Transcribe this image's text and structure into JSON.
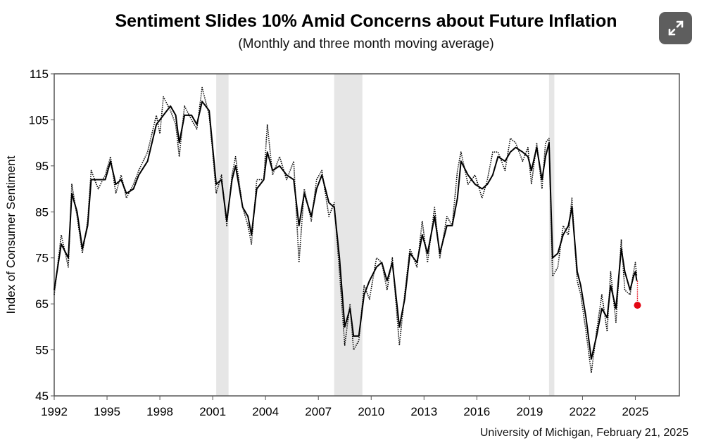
{
  "chart_data": {
    "type": "line",
    "title": "Sentiment Slides 10% Amid Concerns about Future Inflation",
    "subtitle": "(Monthly and three month moving average)",
    "ylabel": "Index of Consumer Sentiment",
    "xlabel": "",
    "source": "University of Michigan, February 21, 2025",
    "xlim": [
      1992,
      2027.5
    ],
    "ylim": [
      45,
      115
    ],
    "x_ticks": [
      "1992",
      "1995",
      "1998",
      "2001",
      "2004",
      "2007",
      "2010",
      "2013",
      "2016",
      "2019",
      "2022",
      "2025"
    ],
    "y_ticks": [
      "115",
      "105",
      "95",
      "85",
      "75",
      "65",
      "55",
      "45"
    ],
    "grid": false,
    "recessions": [
      [
        2001.2,
        2001.9
      ],
      [
        2007.9,
        2009.5
      ],
      [
        2020.1,
        2020.4
      ]
    ],
    "recession_color": "#e6e6e6",
    "series": [
      {
        "style": "dotted",
        "color": "#000000",
        "points": [
          [
            1992,
            67
          ],
          [
            1992.4,
            80
          ],
          [
            1992.8,
            73
          ],
          [
            1993.0,
            91
          ],
          [
            1993.3,
            84
          ],
          [
            1993.6,
            76
          ],
          [
            1993.9,
            83
          ],
          [
            1994.1,
            94
          ],
          [
            1994.5,
            90
          ],
          [
            1994.9,
            93
          ],
          [
            1995.2,
            97
          ],
          [
            1995.5,
            89
          ],
          [
            1995.8,
            93
          ],
          [
            1996.1,
            88
          ],
          [
            1996.5,
            91
          ],
          [
            1996.8,
            94
          ],
          [
            1997.3,
            98
          ],
          [
            1997.8,
            106
          ],
          [
            1998.0,
            102
          ],
          [
            1998.2,
            110
          ],
          [
            1998.6,
            107
          ],
          [
            1998.9,
            104
          ],
          [
            1999.1,
            97
          ],
          [
            1999.4,
            108
          ],
          [
            1999.8,
            105
          ],
          [
            2000.1,
            103
          ],
          [
            2000.4,
            112
          ],
          [
            2000.8,
            106
          ],
          [
            2001.0,
            98
          ],
          [
            2001.2,
            89
          ],
          [
            2001.5,
            93
          ],
          [
            2001.8,
            82
          ],
          [
            2002.1,
            93
          ],
          [
            2002.3,
            97
          ],
          [
            2002.7,
            86
          ],
          [
            2003.0,
            82
          ],
          [
            2003.2,
            78
          ],
          [
            2003.5,
            92
          ],
          [
            2003.9,
            92
          ],
          [
            2004.1,
            104
          ],
          [
            2004.4,
            93
          ],
          [
            2004.8,
            97
          ],
          [
            2005.2,
            92
          ],
          [
            2005.6,
            96
          ],
          [
            2005.9,
            74
          ],
          [
            2006.2,
            90
          ],
          [
            2006.6,
            83
          ],
          [
            2006.9,
            92
          ],
          [
            2007.2,
            94
          ],
          [
            2007.6,
            84
          ],
          [
            2007.9,
            87
          ],
          [
            2008.2,
            72
          ],
          [
            2008.5,
            56
          ],
          [
            2008.8,
            65
          ],
          [
            2009.0,
            55
          ],
          [
            2009.3,
            57
          ],
          [
            2009.6,
            69
          ],
          [
            2009.9,
            66
          ],
          [
            2010.3,
            75
          ],
          [
            2010.6,
            74
          ],
          [
            2010.9,
            68
          ],
          [
            2011.2,
            75
          ],
          [
            2011.6,
            56
          ],
          [
            2011.9,
            67
          ],
          [
            2012.2,
            77
          ],
          [
            2012.6,
            73
          ],
          [
            2012.9,
            83
          ],
          [
            2013.2,
            74
          ],
          [
            2013.6,
            86
          ],
          [
            2013.9,
            75
          ],
          [
            2014.3,
            84
          ],
          [
            2014.6,
            82
          ],
          [
            2014.9,
            94
          ],
          [
            2015.1,
            98
          ],
          [
            2015.5,
            91
          ],
          [
            2015.9,
            93
          ],
          [
            2016.3,
            88
          ],
          [
            2016.6,
            92
          ],
          [
            2016.9,
            98
          ],
          [
            2017.2,
            98
          ],
          [
            2017.6,
            94
          ],
          [
            2017.9,
            101
          ],
          [
            2018.2,
            100
          ],
          [
            2018.6,
            96
          ],
          [
            2018.9,
            99
          ],
          [
            2019.1,
            91
          ],
          [
            2019.4,
            100
          ],
          [
            2019.7,
            90
          ],
          [
            2019.9,
            100
          ],
          [
            2020.1,
            101
          ],
          [
            2020.3,
            71
          ],
          [
            2020.6,
            73
          ],
          [
            2020.9,
            82
          ],
          [
            2021.2,
            80
          ],
          [
            2021.4,
            88
          ],
          [
            2021.7,
            70
          ],
          [
            2021.9,
            67
          ],
          [
            2022.2,
            59
          ],
          [
            2022.5,
            50
          ],
          [
            2022.8,
            59
          ],
          [
            2023.1,
            67
          ],
          [
            2023.4,
            59
          ],
          [
            2023.6,
            72
          ],
          [
            2023.9,
            61
          ],
          [
            2024.2,
            79
          ],
          [
            2024.4,
            68
          ],
          [
            2024.7,
            67
          ],
          [
            2024.9,
            72
          ],
          [
            2025.0,
            74
          ],
          [
            2025.08,
            71
          ]
        ]
      },
      {
        "style": "solid",
        "color": "#000000",
        "points": [
          [
            1992,
            68
          ],
          [
            1992.4,
            78
          ],
          [
            1992.8,
            75
          ],
          [
            1993.0,
            89
          ],
          [
            1993.3,
            85
          ],
          [
            1993.6,
            77
          ],
          [
            1993.9,
            82
          ],
          [
            1994.1,
            92
          ],
          [
            1994.5,
            92
          ],
          [
            1994.9,
            92
          ],
          [
            1995.2,
            96
          ],
          [
            1995.5,
            91
          ],
          [
            1995.8,
            92
          ],
          [
            1996.1,
            89
          ],
          [
            1996.5,
            90
          ],
          [
            1996.8,
            93
          ],
          [
            1997.3,
            96
          ],
          [
            1997.8,
            104
          ],
          [
            1998.2,
            106
          ],
          [
            1998.6,
            108
          ],
          [
            1998.9,
            106
          ],
          [
            1999.1,
            100
          ],
          [
            1999.4,
            106
          ],
          [
            1999.8,
            106
          ],
          [
            2000.1,
            104
          ],
          [
            2000.4,
            109
          ],
          [
            2000.8,
            107
          ],
          [
            2001.0,
            99
          ],
          [
            2001.2,
            91
          ],
          [
            2001.5,
            92
          ],
          [
            2001.8,
            83
          ],
          [
            2002.1,
            92
          ],
          [
            2002.3,
            95
          ],
          [
            2002.7,
            86
          ],
          [
            2003.0,
            84
          ],
          [
            2003.2,
            80
          ],
          [
            2003.5,
            90
          ],
          [
            2003.9,
            92
          ],
          [
            2004.1,
            98
          ],
          [
            2004.4,
            94
          ],
          [
            2004.8,
            95
          ],
          [
            2005.2,
            93
          ],
          [
            2005.6,
            92
          ],
          [
            2005.9,
            82
          ],
          [
            2006.2,
            89
          ],
          [
            2006.6,
            84
          ],
          [
            2006.9,
            90
          ],
          [
            2007.2,
            93
          ],
          [
            2007.6,
            87
          ],
          [
            2007.9,
            86
          ],
          [
            2008.2,
            75
          ],
          [
            2008.5,
            60
          ],
          [
            2008.8,
            64
          ],
          [
            2009.0,
            58
          ],
          [
            2009.3,
            58
          ],
          [
            2009.6,
            67
          ],
          [
            2009.9,
            70
          ],
          [
            2010.3,
            73
          ],
          [
            2010.6,
            74
          ],
          [
            2010.9,
            70
          ],
          [
            2011.2,
            74
          ],
          [
            2011.6,
            60
          ],
          [
            2011.9,
            66
          ],
          [
            2012.2,
            76
          ],
          [
            2012.6,
            74
          ],
          [
            2012.9,
            80
          ],
          [
            2013.2,
            76
          ],
          [
            2013.6,
            84
          ],
          [
            2013.9,
            76
          ],
          [
            2014.3,
            82
          ],
          [
            2014.6,
            82
          ],
          [
            2014.9,
            88
          ],
          [
            2015.1,
            96
          ],
          [
            2015.5,
            93
          ],
          [
            2015.9,
            91
          ],
          [
            2016.3,
            90
          ],
          [
            2016.6,
            91
          ],
          [
            2016.9,
            93
          ],
          [
            2017.2,
            97
          ],
          [
            2017.6,
            96
          ],
          [
            2017.9,
            98
          ],
          [
            2018.2,
            99
          ],
          [
            2018.6,
            98
          ],
          [
            2018.9,
            97
          ],
          [
            2019.1,
            94
          ],
          [
            2019.4,
            99
          ],
          [
            2019.7,
            92
          ],
          [
            2019.9,
            97
          ],
          [
            2020.1,
            100
          ],
          [
            2020.3,
            75
          ],
          [
            2020.6,
            76
          ],
          [
            2020.9,
            80
          ],
          [
            2021.2,
            82
          ],
          [
            2021.4,
            86
          ],
          [
            2021.7,
            72
          ],
          [
            2021.9,
            69
          ],
          [
            2022.2,
            62
          ],
          [
            2022.5,
            53
          ],
          [
            2022.8,
            58
          ],
          [
            2023.1,
            64
          ],
          [
            2023.4,
            62
          ],
          [
            2023.6,
            69
          ],
          [
            2023.9,
            64
          ],
          [
            2024.2,
            77
          ],
          [
            2024.4,
            72
          ],
          [
            2024.7,
            68
          ],
          [
            2024.9,
            71
          ],
          [
            2025.0,
            72
          ],
          [
            2025.08,
            70
          ]
        ]
      }
    ],
    "highlight": {
      "x": 2025.12,
      "y": 64.7,
      "from_y": 70,
      "color": "#e30613"
    }
  },
  "ui": {
    "expand_icon": "expand-icon"
  }
}
